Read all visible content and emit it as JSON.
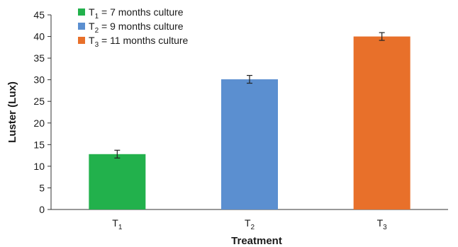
{
  "chart_data": {
    "type": "bar",
    "title": "",
    "xlabel": "Treatment",
    "ylabel": "Luster (Lux)",
    "ylim": [
      0,
      45
    ],
    "yticks": [
      0,
      5,
      10,
      15,
      20,
      25,
      30,
      35,
      40,
      45
    ],
    "grid": false,
    "legend_position": "top-left",
    "categories": [
      {
        "base": "T",
        "sub": "1"
      },
      {
        "base": "T",
        "sub": "2"
      },
      {
        "base": "T",
        "sub": "3"
      }
    ],
    "values": [
      12.8,
      30.1,
      40.0
    ],
    "errors": [
      0.9,
      0.9,
      0.9
    ],
    "colors": [
      "#22b14c",
      "#5b8fd0",
      "#e8702a"
    ],
    "legend": [
      {
        "base": "T",
        "sub": "1",
        "text": " = 7 months culture",
        "color": "#22b14c"
      },
      {
        "base": "T",
        "sub": "2",
        "text": " = 9 months culture",
        "color": "#5b8fd0"
      },
      {
        "base": "T",
        "sub": "3",
        "text": " = 11 months culture",
        "color": "#e8702a"
      }
    ]
  }
}
